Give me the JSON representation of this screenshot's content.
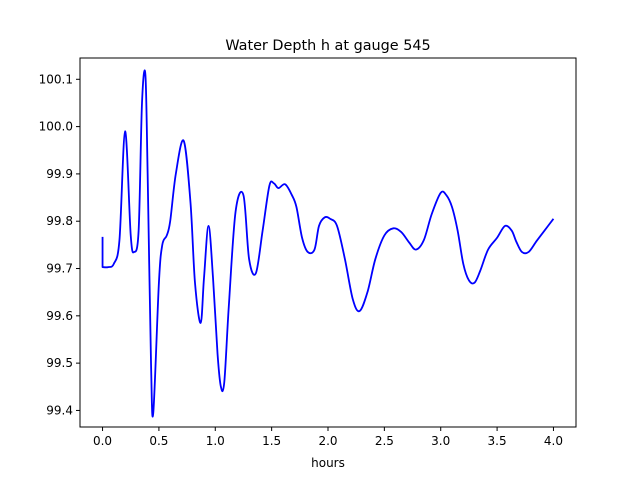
{
  "chart_data": {
    "type": "line",
    "title": "Water Depth h at gauge 545",
    "xlabel": "hours",
    "ylabel": "",
    "xlim": [
      -0.2,
      4.2
    ],
    "ylim": [
      99.365,
      100.145
    ],
    "xticks": [
      0.0,
      0.5,
      1.0,
      1.5,
      2.0,
      2.5,
      3.0,
      3.5,
      4.0
    ],
    "xtick_labels": [
      "0.0",
      "0.5",
      "1.0",
      "1.5",
      "2.0",
      "2.5",
      "3.0",
      "3.5",
      "4.0"
    ],
    "yticks": [
      99.4,
      99.5,
      99.6,
      99.7,
      99.8,
      99.9,
      100.0,
      100.1
    ],
    "ytick_labels": [
      "99.4",
      "99.5",
      "99.6",
      "99.7",
      "99.8",
      "99.9",
      "100.0",
      "100.1"
    ],
    "grid": false,
    "legend": false,
    "series": [
      {
        "color": "#0000ff",
        "x": [
          0.0,
          0.0,
          0.05,
          0.1,
          0.15,
          0.2,
          0.25,
          0.28,
          0.32,
          0.35,
          0.38,
          0.4,
          0.43,
          0.45,
          0.5,
          0.53,
          0.57,
          0.6,
          0.65,
          0.72,
          0.78,
          0.82,
          0.87,
          0.9,
          0.94,
          0.98,
          1.02,
          1.05,
          1.08,
          1.12,
          1.18,
          1.25,
          1.3,
          1.36,
          1.42,
          1.48,
          1.52,
          1.56,
          1.62,
          1.68,
          1.72,
          1.77,
          1.82,
          1.88,
          1.92,
          1.97,
          2.02,
          2.08,
          2.15,
          2.22,
          2.28,
          2.35,
          2.42,
          2.5,
          2.58,
          2.65,
          2.72,
          2.78,
          2.85,
          2.92,
          3.0,
          3.05,
          3.1,
          3.15,
          3.2,
          3.25,
          3.3,
          3.35,
          3.42,
          3.5,
          3.57,
          3.63,
          3.67,
          3.72,
          3.78,
          3.85,
          3.92,
          4.0
        ],
        "y": [
          99.767,
          99.703,
          99.703,
          99.71,
          99.76,
          99.99,
          99.77,
          99.735,
          99.78,
          100.05,
          100.11,
          99.9,
          99.5,
          99.395,
          99.67,
          99.75,
          99.77,
          99.8,
          99.9,
          99.97,
          99.84,
          99.67,
          99.585,
          99.68,
          99.79,
          99.68,
          99.52,
          99.45,
          99.46,
          99.62,
          99.82,
          99.855,
          99.72,
          99.69,
          99.78,
          99.875,
          99.88,
          99.87,
          99.878,
          99.855,
          99.83,
          99.765,
          99.735,
          99.74,
          99.79,
          99.808,
          99.805,
          99.79,
          99.72,
          99.635,
          99.61,
          99.65,
          99.72,
          99.77,
          99.785,
          99.777,
          99.755,
          99.74,
          99.76,
          99.815,
          99.86,
          99.855,
          99.83,
          99.78,
          99.71,
          99.675,
          99.67,
          99.695,
          99.74,
          99.765,
          99.79,
          99.78,
          99.757,
          99.735,
          99.735,
          99.758,
          99.78,
          99.805
        ]
      }
    ]
  }
}
